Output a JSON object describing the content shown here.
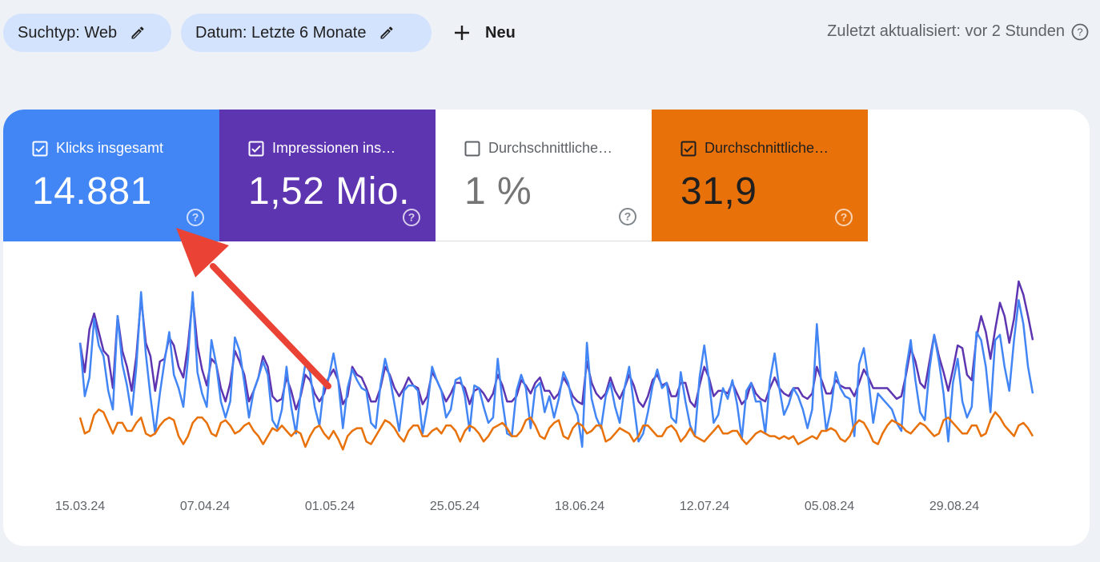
{
  "filters": {
    "search_type": "Suchtyp: Web",
    "date": "Datum: Letzte 6 Monate",
    "new_label": "Neu"
  },
  "status": {
    "last_updated": "Zuletzt aktualisiert: vor 2 Stunden"
  },
  "metrics": [
    {
      "label": "Klicks insgesamt",
      "value": "14.881",
      "checked": true,
      "color": "#4285f4"
    },
    {
      "label": "Impressionen ins…",
      "value": "1,52 Mio.",
      "checked": true,
      "color": "#5e35b1"
    },
    {
      "label": "Durchschnittliche…",
      "value": "1 %",
      "checked": false,
      "color": "#ffffff"
    },
    {
      "label": "Durchschnittliche…",
      "value": "31,9",
      "checked": true,
      "color": "#e8710a"
    }
  ],
  "annotation": {
    "type": "arrow",
    "color": "#ea4335",
    "target": "metric-tile-clicks"
  },
  "chart_data": {
    "type": "line",
    "x_tick_labels": [
      "15.03.24",
      "07.04.24",
      "01.05.24",
      "25.05.24",
      "18.06.24",
      "12.07.24",
      "05.08.24",
      "29.08.24"
    ],
    "y_axis_visible": false,
    "grid": false,
    "series": [
      {
        "name": "Klicks insgesamt",
        "color": "#4285f4",
        "values": [
          57,
          37,
          44,
          66,
          56,
          52,
          39,
          32,
          67,
          49,
          41,
          30,
          48,
          76,
          53,
          37,
          23,
          38,
          50,
          61,
          45,
          40,
          33,
          51,
          76,
          46,
          38,
          33,
          58,
          49,
          35,
          29,
          35,
          59,
          54,
          42,
          29,
          39,
          44,
          50,
          45,
          28,
          25,
          32,
          48,
          33,
          23,
          38,
          49,
          46,
          33,
          26,
          41,
          44,
          53,
          43,
          25,
          40,
          47,
          43,
          40,
          39,
          27,
          25,
          41,
          51,
          44,
          34,
          24,
          39,
          41,
          41,
          39,
          23,
          33,
          48,
          43,
          39,
          29,
          32,
          43,
          44,
          37,
          24,
          41,
          40,
          33,
          27,
          29,
          51,
          35,
          23,
          22,
          39,
          45,
          40,
          25,
          40,
          42,
          31,
          37,
          29,
          36,
          46,
          42,
          34,
          30,
          18,
          57,
          36,
          29,
          25,
          37,
          42,
          33,
          27,
          40,
          48,
          34,
          20,
          23,
          31,
          41,
          47,
          40,
          42,
          29,
          27,
          46,
          35,
          26,
          22,
          44,
          56,
          43,
          27,
          30,
          40,
          36,
          43,
          34,
          21,
          39,
          42,
          35,
          35,
          23,
          43,
          53,
          40,
          30,
          34,
          40,
          37,
          32,
          25,
          32,
          64,
          40,
          24,
          32,
          46,
          40,
          37,
          36,
          22,
          49,
          55,
          43,
          27,
          38,
          36,
          34,
          32,
          27,
          24,
          47,
          58,
          43,
          31,
          28,
          47,
          60,
          50,
          38,
          20,
          42,
          51,
          35,
          29,
          33,
          61,
          58,
          48,
          31,
          58,
          60,
          48,
          39,
          58,
          73,
          64,
          48,
          38
        ]
      },
      {
        "name": "Impressionen insgesamt",
        "color": "#5e35b1",
        "values": [
          57,
          46,
          62,
          68,
          61,
          54,
          52,
          40,
          67,
          54,
          48,
          39,
          52,
          74,
          57,
          52,
          39,
          50,
          51,
          59,
          56,
          48,
          44,
          56,
          74,
          56,
          47,
          41,
          51,
          49,
          40,
          35,
          42,
          54,
          50,
          45,
          35,
          39,
          44,
          52,
          48,
          37,
          35,
          36,
          44,
          39,
          32,
          37,
          45,
          43,
          38,
          35,
          38,
          44,
          47,
          43,
          34,
          37,
          48,
          45,
          44,
          40,
          35,
          35,
          40,
          48,
          45,
          40,
          37,
          40,
          44,
          41,
          40,
          34,
          37,
          46,
          43,
          39,
          35,
          38,
          42,
          42,
          40,
          34,
          39,
          40,
          38,
          35,
          38,
          45,
          41,
          35,
          35,
          37,
          43,
          41,
          38,
          42,
          44,
          39,
          39,
          36,
          38,
          44,
          41,
          37,
          35,
          34,
          50,
          42,
          38,
          36,
          38,
          44,
          39,
          36,
          40,
          45,
          41,
          35,
          33,
          37,
          43,
          45,
          41,
          42,
          37,
          37,
          42,
          42,
          35,
          33,
          41,
          48,
          44,
          37,
          39,
          39,
          38,
          42,
          38,
          34,
          36,
          42,
          38,
          36,
          35,
          40,
          44,
          40,
          38,
          37,
          40,
          40,
          37,
          36,
          38,
          48,
          43,
          38,
          38,
          43,
          41,
          40,
          40,
          37,
          42,
          47,
          44,
          40,
          40,
          40,
          40,
          38,
          36,
          37,
          45,
          55,
          50,
          42,
          40,
          50,
          60,
          52,
          46,
          39,
          47,
          56,
          55,
          45,
          43,
          59,
          67,
          61,
          51,
          62,
          72,
          67,
          57,
          66,
          80,
          75,
          67,
          58
        ]
      },
      {
        "name": "Durchschnittliche Position",
        "color": "#e8710a",
        "values": [
          29,
          23,
          24,
          30,
          32,
          31,
          27,
          23,
          27,
          27,
          24,
          24,
          27,
          29,
          23,
          22,
          23,
          26,
          28,
          29,
          28,
          22,
          19,
          22,
          27,
          29,
          29,
          27,
          23,
          22,
          27,
          28,
          26,
          23,
          24,
          26,
          27,
          24,
          22,
          19,
          22,
          25,
          24,
          26,
          24,
          22,
          24,
          23,
          18,
          22,
          25,
          26,
          23,
          21,
          24,
          21,
          17,
          22,
          24,
          25,
          25,
          20,
          19,
          22,
          25,
          28,
          27,
          25,
          22,
          20,
          24,
          26,
          26,
          22,
          22,
          24,
          25,
          23,
          26,
          26,
          24,
          20,
          24,
          26,
          25,
          23,
          20,
          22,
          25,
          26,
          27,
          25,
          22,
          22,
          24,
          28,
          29,
          26,
          22,
          21,
          25,
          27,
          28,
          22,
          21,
          25,
          27,
          26,
          23,
          24,
          26,
          26,
          20,
          21,
          23,
          25,
          24,
          23,
          20,
          22,
          26,
          26,
          24,
          22,
          22,
          25,
          26,
          24,
          20,
          22,
          25,
          22,
          21,
          20,
          22,
          24,
          26,
          23,
          23,
          24,
          24,
          21,
          19,
          21,
          23,
          24,
          23,
          22,
          22,
          21,
          22,
          21,
          22,
          19,
          20,
          21,
          22,
          21,
          24,
          24,
          25,
          24,
          21,
          20,
          22,
          26,
          28,
          27,
          24,
          20,
          19,
          23,
          26,
          28,
          27,
          26,
          24,
          23,
          25,
          27,
          26,
          24,
          22,
          23,
          28,
          29,
          27,
          25,
          23,
          23,
          26,
          26,
          22,
          23,
          28,
          31,
          29,
          26,
          24,
          22,
          26,
          27,
          25,
          22
        ]
      }
    ]
  }
}
